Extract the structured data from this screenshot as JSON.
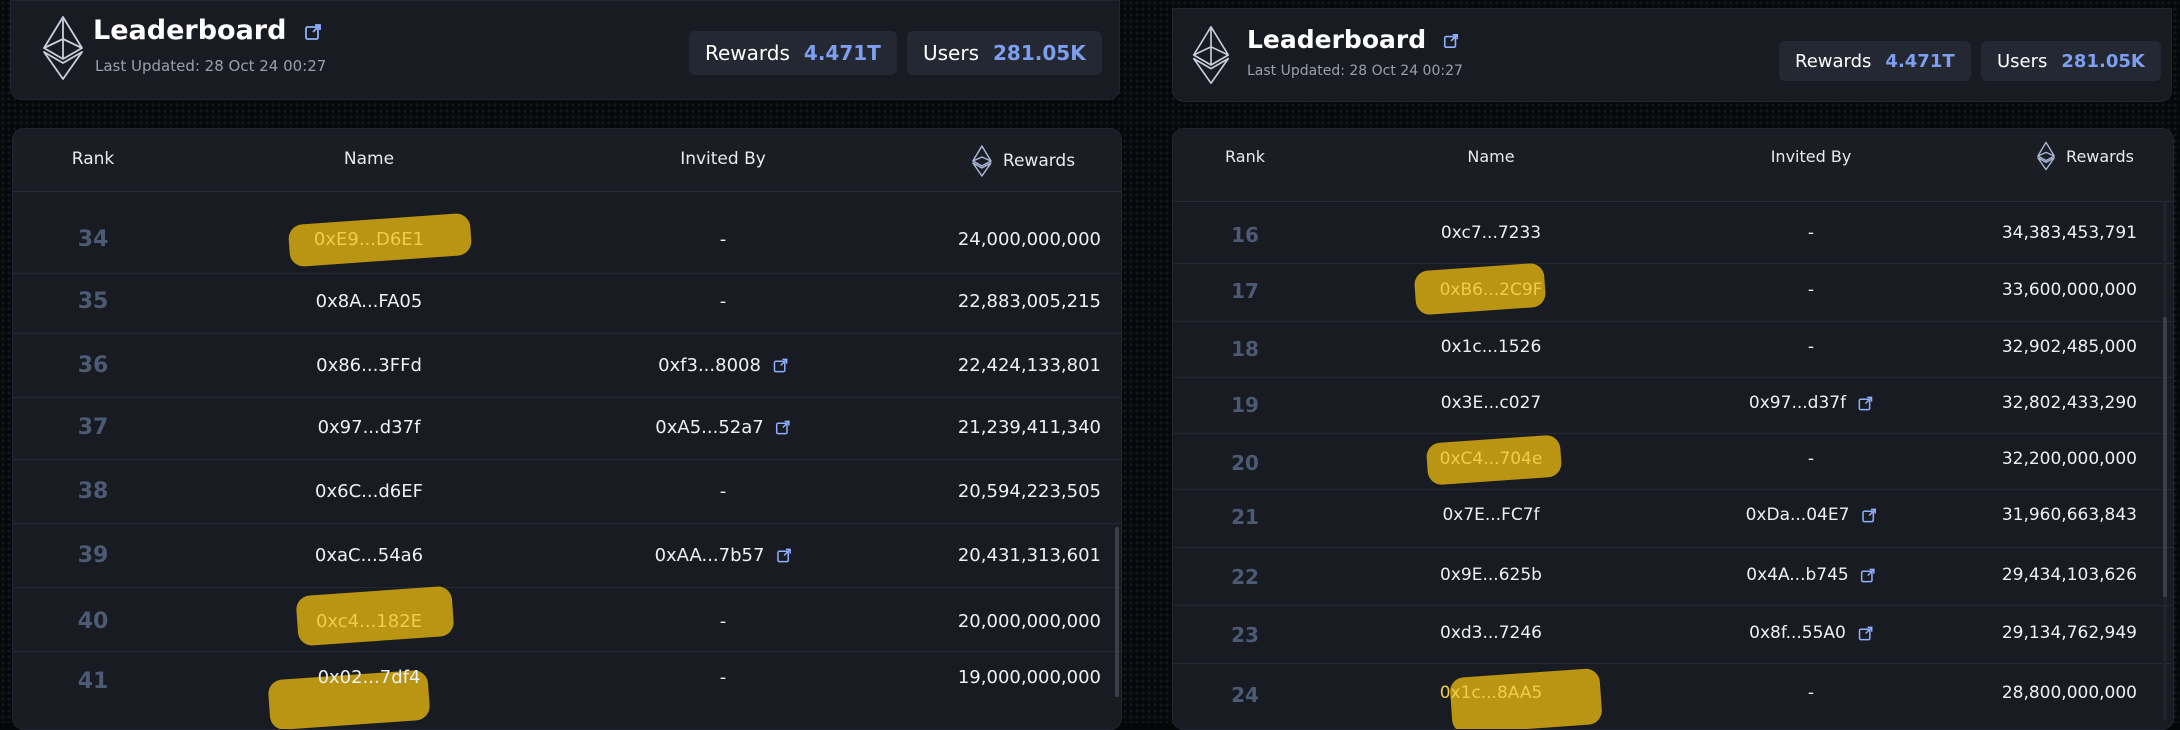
{
  "left": {
    "title": "Leaderboard",
    "updated": "Last Updated: 28 Oct 24 00:27",
    "rewards_label": "Rewards",
    "rewards_value": "4.471T",
    "users_label": "Users",
    "users_value": "281.05K",
    "columns": {
      "rank": "Rank",
      "name": "Name",
      "invited": "Invited By",
      "rewards": "Rewards"
    },
    "rows": [
      {
        "rank": "34",
        "name": "0xE9...D6E1",
        "invited": "-",
        "rewards": "24,000,000,000"
      },
      {
        "rank": "35",
        "name": "0x8A...FA05",
        "invited": "-",
        "rewards": "22,883,005,215"
      },
      {
        "rank": "36",
        "name": "0x86...3FFd",
        "invited": "0xf3...8008",
        "rewards": "22,424,133,801"
      },
      {
        "rank": "37",
        "name": "0x97...d37f",
        "invited": "0xA5...52a7",
        "rewards": "21,239,411,340"
      },
      {
        "rank": "38",
        "name": "0x6C...d6EF",
        "invited": "-",
        "rewards": "20,594,223,505"
      },
      {
        "rank": "39",
        "name": "0xaC...54a6",
        "invited": "0xAA...7b57",
        "rewards": "20,431,313,601"
      },
      {
        "rank": "40",
        "name": "0xc4...182E",
        "invited": "-",
        "rewards": "20,000,000,000"
      },
      {
        "rank": "41",
        "name": "0x02...7df4",
        "invited": "-",
        "rewards": "19,000,000,000"
      }
    ]
  },
  "right": {
    "title": "Leaderboard",
    "updated": "Last Updated: 28 Oct 24 00:27",
    "rewards_label": "Rewards",
    "rewards_value": "4.471T",
    "users_label": "Users",
    "users_value": "281.05K",
    "columns": {
      "rank": "Rank",
      "name": "Name",
      "invited": "Invited By",
      "rewards": "Rewards"
    },
    "rows": [
      {
        "rank": "16",
        "name": "0xc7...7233",
        "invited": "-",
        "rewards": "34,383,453,791"
      },
      {
        "rank": "17",
        "name": "0xB6...2C9F",
        "invited": "-",
        "rewards": "33,600,000,000"
      },
      {
        "rank": "18",
        "name": "0x1c...1526",
        "invited": "-",
        "rewards": "32,902,485,000"
      },
      {
        "rank": "19",
        "name": "0x3E...c027",
        "invited": "0x97...d37f",
        "rewards": "32,802,433,290"
      },
      {
        "rank": "20",
        "name": "0xC4...704e",
        "invited": "-",
        "rewards": "32,200,000,000"
      },
      {
        "rank": "21",
        "name": "0x7E...FC7f",
        "invited": "0xDa...04E7",
        "rewards": "31,960,663,843"
      },
      {
        "rank": "22",
        "name": "0x9E...625b",
        "invited": "0x4A...b745",
        "rewards": "29,434,103,626"
      },
      {
        "rank": "23",
        "name": "0xd3...7246",
        "invited": "0x8f...55A0",
        "rewards": "29,134,762,949"
      },
      {
        "rank": "24",
        "name": "0x1c...8AA5",
        "invited": "-",
        "rewards": "28,800,000,000"
      }
    ]
  },
  "colors": {
    "accent": "#7e9ff0",
    "highlight": "#c8a012",
    "rank": "#4d5a74"
  },
  "icons": {
    "logo": "ethereum-diamond-icon",
    "external": "external-link-icon"
  }
}
